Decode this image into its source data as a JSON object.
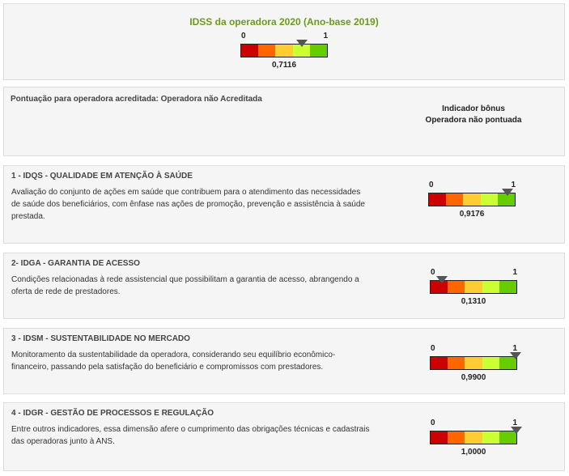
{
  "colors": {
    "title_green": "#6b9a1a",
    "scale": [
      "#cc0000",
      "#ff6600",
      "#ffcc33",
      "#ccff33",
      "#66cc00"
    ],
    "marker": "#555555"
  },
  "scale_labels": {
    "min": "0",
    "max": "1"
  },
  "overall": {
    "title": "IDSS da operadora 2020 (Ano-base 2019)",
    "value_text": "0,7116",
    "value": 0.7116
  },
  "accreditation": {
    "text": "Pontuação para operadora acreditada: Operadora não Acreditada",
    "bonus_title": "Indicador bônus",
    "bonus_status": "Operadora não pontuada"
  },
  "dimensions": [
    {
      "title": "1 - IDQS - QUALIDADE EM ATENÇÃO À SAÚDE",
      "description": "Avaliação do conjunto de ações em saúde que contribuem para o atendimento das necessidades de saúde dos beneficiários, com ênfase nas ações de promoção, prevenção e assistência à saúde prestada.",
      "value_text": "0,9176",
      "value": 0.9176
    },
    {
      "title": "2- IDGA - GARANTIA DE ACESSO",
      "description": "Condições relacionadas à rede assistencial que possibilitam a garantia de acesso, abrangendo a oferta de rede de prestadores.",
      "value_text": "0,1310",
      "value": 0.131
    },
    {
      "title": "3 - IDSM - SUSTENTABILIDADE NO MERCADO",
      "description": "Monitoramento da sustentabilidade da operadora, considerando seu equilíbrio econômico-financeiro, passando pela satisfação do beneficiário e compromissos com prestadores.",
      "value_text": "0,9900",
      "value": 0.99
    },
    {
      "title": "4 - IDGR - GESTÃO DE PROCESSOS E REGULAÇÃO",
      "description": "Entre outros indicadores, essa dimensão afere o cumprimento das obrigações técnicas e cadastrais das operadoras junto à ANS.",
      "value_text": "1,0000",
      "value": 1.0
    }
  ]
}
